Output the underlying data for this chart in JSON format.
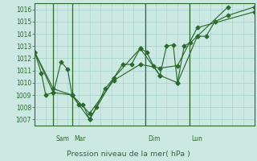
{
  "title": "Pression niveau de la mer( hPa )",
  "bg_color": "#cce8e3",
  "grid_color": "#aad5ce",
  "line_color": "#2d6b2d",
  "ylim": [
    1006.5,
    1016.5
  ],
  "yticks": [
    1007,
    1008,
    1009,
    1010,
    1011,
    1012,
    1013,
    1014,
    1015,
    1016
  ],
  "xlim": [
    0,
    100
  ],
  "day_vlines_x": [
    8.5,
    17.0,
    50.5,
    70.5
  ],
  "day_labels": [
    "Sam",
    "Mar",
    "Dim",
    "Lun"
  ],
  "s1_x": [
    0,
    3,
    5,
    8.5,
    12,
    15,
    17,
    20,
    22,
    25,
    28,
    32,
    36,
    40,
    44,
    48,
    51,
    54,
    57,
    60,
    63,
    65,
    68,
    71,
    74,
    78,
    82,
    88,
    100
  ],
  "s1_y": [
    1012.5,
    1010.8,
    1009.0,
    1009.2,
    1011.7,
    1011.1,
    1009.0,
    1008.2,
    1008.2,
    1007.0,
    1008.0,
    1009.5,
    1010.4,
    1011.5,
    1011.5,
    1012.8,
    1012.5,
    1011.4,
    1010.6,
    1013.0,
    1013.1,
    1010.0,
    1013.0,
    1013.3,
    1013.8,
    1013.8,
    1015.0,
    1015.5,
    1016.2
  ],
  "s2_x": [
    0,
    8.5,
    17,
    25,
    36,
    48,
    57,
    65,
    74,
    88
  ],
  "s2_y": [
    1012.5,
    1009.2,
    1009.0,
    1007.0,
    1010.4,
    1012.8,
    1010.6,
    1010.0,
    1013.8,
    1016.2
  ],
  "s3_x": [
    0,
    8.5,
    17,
    25,
    36,
    48,
    57,
    65,
    74,
    100
  ],
  "s3_y": [
    1012.5,
    1009.5,
    1009.0,
    1007.5,
    1010.2,
    1011.5,
    1011.2,
    1011.4,
    1014.5,
    1015.8
  ]
}
